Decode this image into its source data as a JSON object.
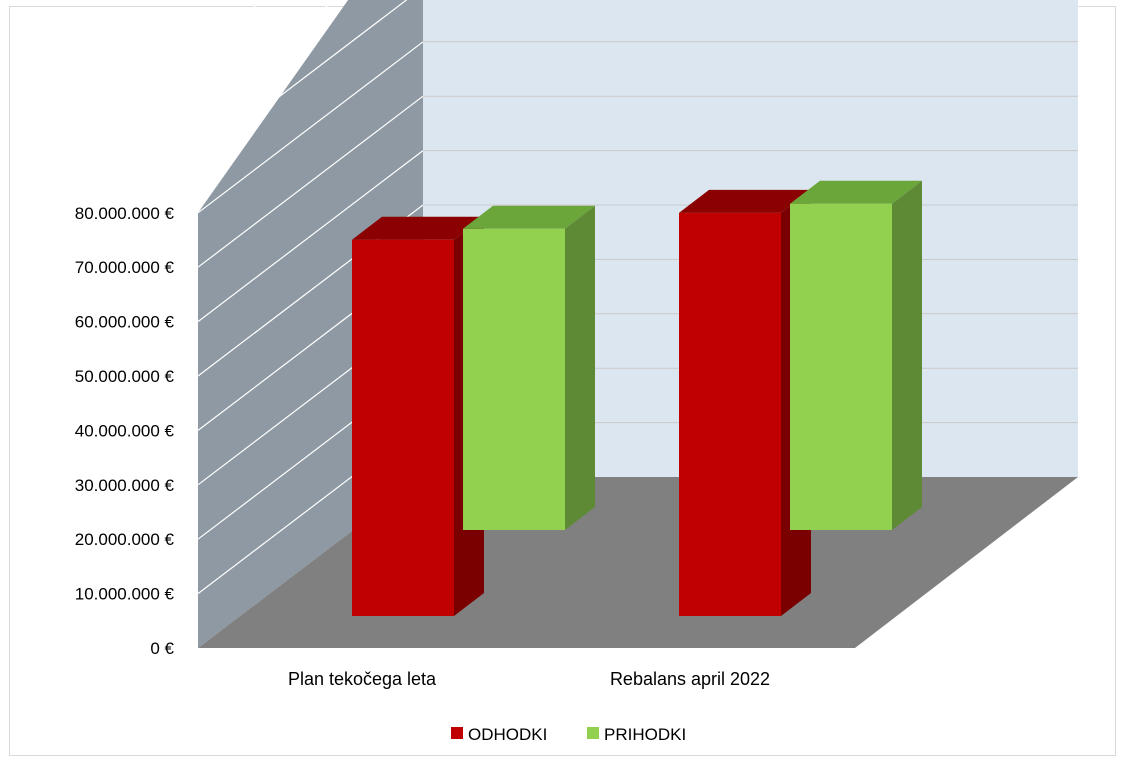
{
  "chart_data": {
    "type": "bar",
    "title": "",
    "categories": [
      "Plan tekočega leta",
      "Rebalans april 2022"
    ],
    "series": [
      {
        "name": "ODHODKI",
        "values": [
          70000000,
          75000000
        ]
      },
      {
        "name": "PRIHODKI",
        "values": [
          60000000,
          65000000
        ]
      }
    ],
    "ylim": [
      0,
      80000000
    ],
    "y_ticks": [
      "0 €",
      "10.000.000 €",
      "20.000.000 €",
      "30.000.000 €",
      "40.000.000 €",
      "50.000.000 €",
      "60.000.000 €",
      "70.000.000 €",
      "80.000.000 €"
    ],
    "legend": "bottom",
    "grid": true,
    "colors": {
      "ODHODKI": {
        "front": "#c00000",
        "top": "#8b0000",
        "side": "#7a0000"
      },
      "PRIHODKI": {
        "front": "#92d050",
        "top": "#6aa63a",
        "side": "#5e8a36"
      },
      "back_wall": "#dce6f1",
      "side_wall": "#8e99a3",
      "floor": "#808080",
      "gridline": "#ffffff"
    }
  }
}
